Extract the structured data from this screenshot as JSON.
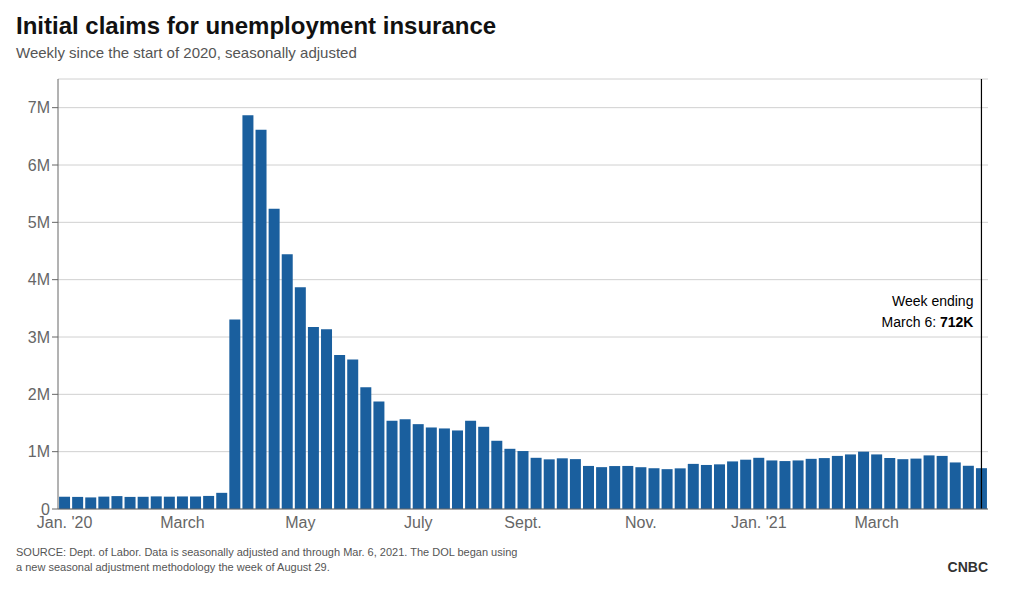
{
  "chart_data": {
    "type": "bar",
    "title": "Initial claims for unemployment insurance",
    "subtitle": "Weekly since the start of 2020, seasonally adjusted",
    "categories": [
      "Jan. '20",
      null,
      null,
      null,
      null,
      null,
      null,
      null,
      null,
      "March",
      null,
      null,
      null,
      null,
      null,
      null,
      null,
      null,
      "May",
      null,
      null,
      null,
      null,
      null,
      null,
      null,
      null,
      "July",
      null,
      null,
      null,
      null,
      null,
      null,
      null,
      "Sept.",
      null,
      null,
      null,
      null,
      null,
      null,
      null,
      null,
      "Nov.",
      null,
      null,
      null,
      null,
      null,
      null,
      null,
      null,
      "Jan. '21",
      null,
      null,
      null,
      null,
      null,
      null,
      null,
      null,
      "March",
      null,
      null,
      null,
      null,
      null,
      null,
      null,
      null
    ],
    "values": [
      214000,
      211000,
      202000,
      216000,
      225000,
      211000,
      213000,
      220000,
      215000,
      219000,
      218000,
      228000,
      282000,
      3307000,
      6867000,
      6615000,
      5237000,
      4442000,
      3867000,
      3176000,
      3137000,
      2687000,
      2606000,
      2123000,
      1877000,
      1540000,
      1566000,
      1480000,
      1422000,
      1405000,
      1370000,
      1540000,
      1434000,
      1190000,
      1050000,
      1011000,
      893000,
      866000,
      884000,
      870000,
      751000,
      730000,
      749000,
      751000,
      729000,
      711000,
      695000,
      709000,
      787000,
      768000,
      779000,
      830000,
      860000,
      893000,
      847000,
      836000,
      847000,
      875000,
      888000,
      926000,
      952000,
      1000000,
      952000,
      890000,
      869000,
      879000,
      935000,
      926000,
      812000,
      754000,
      712000
    ],
    "color": "#1a5f9e",
    "ylim": [
      0,
      7500000
    ],
    "yticks": [
      0,
      {
        "value": 1000000,
        "label": "1M"
      },
      {
        "value": 2000000,
        "label": "2M"
      },
      {
        "value": 3000000,
        "label": "3M"
      },
      {
        "value": 4000000,
        "label": "4M"
      },
      {
        "value": 5000000,
        "label": "5M"
      },
      {
        "value": 6000000,
        "label": "6M"
      },
      {
        "value": 7000000,
        "label": "7M"
      }
    ],
    "grid": true,
    "annotations": [
      "Week ending",
      "March 6: ",
      "712K"
    ],
    "source": "SOURCE: Dept. of Labor. Data is seasonally adjusted and through Mar. 6, 2021. The DOL began using\na new seasonal adjustment methodology the week of August 29.",
    "logo": "CNBC"
  }
}
